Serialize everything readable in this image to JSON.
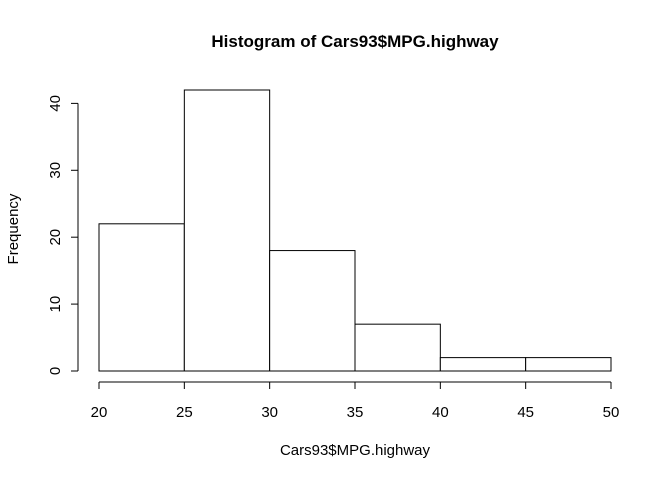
{
  "chart_data": {
    "type": "bar",
    "title": "Histogram of Cars93$MPG.highway",
    "xlabel": "Cars93$MPG.highway",
    "ylabel": "Frequency",
    "bins": [
      {
        "from": 20,
        "to": 25,
        "count": 22
      },
      {
        "from": 25,
        "to": 30,
        "count": 42
      },
      {
        "from": 30,
        "to": 35,
        "count": 18
      },
      {
        "from": 35,
        "to": 40,
        "count": 7
      },
      {
        "from": 40,
        "to": 45,
        "count": 2
      },
      {
        "from": 45,
        "to": 50,
        "count": 2
      }
    ],
    "xlim": [
      20,
      50
    ],
    "ylim": [
      0,
      42
    ],
    "x_ticks": [
      "20",
      "25",
      "30",
      "35",
      "40",
      "45",
      "50"
    ],
    "y_ticks": [
      "0",
      "10",
      "20",
      "30",
      "40"
    ],
    "grid": false,
    "colors": {
      "fill": "#ffffff",
      "stroke": "#000000"
    }
  }
}
